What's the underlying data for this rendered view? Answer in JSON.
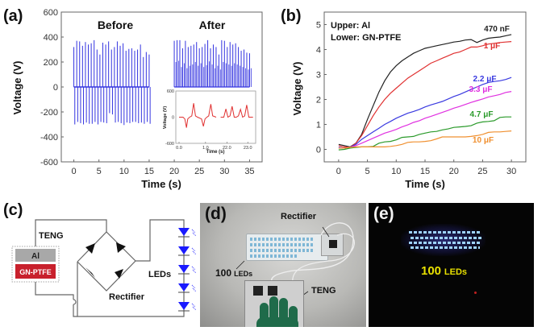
{
  "figure": {
    "panels": {
      "a": "(a)",
      "b": "(b)",
      "c": "(c)",
      "d": "(d)",
      "e": "(e)"
    }
  },
  "chart_data": [
    {
      "id": "a",
      "type": "line",
      "title": "",
      "xlabel": "Time (s)",
      "ylabel": "Voltage (V)",
      "xlim": [
        -2.5,
        37.5
      ],
      "ylim": [
        -600,
        600
      ],
      "xticks": [
        0,
        5,
        10,
        15,
        20,
        25,
        30,
        35
      ],
      "yticks": [
        -600,
        -400,
        -200,
        0,
        200,
        400,
        600
      ],
      "grid": false,
      "annotations": [
        "Before",
        "After"
      ],
      "color": "#3434e0",
      "series": [
        {
          "name": "Before",
          "kind": "ac_pulses",
          "x_range": [
            0,
            15
          ],
          "positive_peaks": [
            320,
            370,
            365,
            330,
            360,
            340,
            350,
            375,
            300,
            260,
            355,
            340,
            365,
            300,
            320,
            365,
            330,
            350,
            290,
            305,
            310,
            290,
            300,
            340,
            240,
            280,
            260
          ],
          "negative_peaks": [
            -300,
            -280,
            -290,
            -300,
            -285,
            -295,
            -295,
            -280,
            -300,
            -280,
            -285,
            -290,
            -210,
            -220,
            -285,
            -280,
            -290,
            -305,
            -285,
            -290,
            -280,
            -280,
            -290,
            -285,
            -295,
            -280,
            -295
          ]
        },
        {
          "name": "After",
          "kind": "dc_pulses",
          "x_range": [
            20,
            35
          ],
          "positive_peaks": [
            370,
            375,
            375,
            310,
            370,
            320,
            330,
            340,
            360,
            310,
            320,
            345,
            375,
            310,
            340,
            320,
            260,
            375,
            370,
            320,
            360,
            340,
            350,
            320,
            290,
            300,
            275,
            270
          ],
          "secondary_peaks": [
            200,
            210,
            160,
            190,
            150,
            170,
            180,
            200,
            170,
            190,
            160,
            175,
            205,
            180,
            150,
            170,
            140,
            200,
            190,
            180,
            170,
            190,
            180,
            170,
            160,
            150,
            140,
            150
          ]
        }
      ],
      "inset": {
        "type": "line",
        "xlabel": "Time (s)",
        "ylabel": "Voltage (V)",
        "ylim": [
          -600,
          600
        ],
        "yticks": [
          -600,
          0,
          600
        ],
        "xtick_labels": [
          "0.0",
          "1.0",
          "22.0",
          "23.0"
        ],
        "color": "#e03030",
        "segments": [
          {
            "name": "Before (0.0-1.4 s)",
            "points": [
              [
                0.0,
                0
              ],
              [
                0.15,
                0
              ],
              [
                0.22,
                -40
              ],
              [
                0.28,
                -240
              ],
              [
                0.33,
                -40
              ],
              [
                0.4,
                0
              ],
              [
                0.48,
                30
              ],
              [
                0.55,
                320
              ],
              [
                0.62,
                30
              ],
              [
                0.7,
                0
              ],
              [
                0.85,
                -40
              ],
              [
                0.92,
                -210
              ],
              [
                0.98,
                -40
              ],
              [
                1.05,
                0
              ],
              [
                1.12,
                30
              ],
              [
                1.2,
                300
              ],
              [
                1.27,
                30
              ],
              [
                1.4,
                0
              ]
            ]
          },
          {
            "name": "After (21.6-23.3 s)",
            "points": [
              [
                21.7,
                0
              ],
              [
                21.85,
                0
              ],
              [
                21.95,
                190
              ],
              [
                22.05,
                0
              ],
              [
                22.15,
                30
              ],
              [
                22.25,
                250
              ],
              [
                22.35,
                0
              ],
              [
                22.45,
                0
              ],
              [
                22.55,
                30
              ],
              [
                22.65,
                180
              ],
              [
                22.75,
                0
              ],
              [
                22.85,
                30
              ],
              [
                22.95,
                280
              ],
              [
                23.05,
                0
              ],
              [
                23.25,
                0
              ]
            ]
          }
        ]
      }
    },
    {
      "id": "b",
      "type": "line",
      "title": "",
      "xlabel": "Time (s)",
      "ylabel": "Voltage (V)",
      "xlim": [
        -2.5,
        32.5
      ],
      "ylim": [
        -0.5,
        5.5
      ],
      "xticks": [
        0,
        5,
        10,
        15,
        20,
        25,
        30
      ],
      "yticks": [
        0,
        1,
        2,
        3,
        4,
        5
      ],
      "grid": false,
      "legend_text": [
        "Upper: Al",
        "Lower: GN-PTFE"
      ],
      "legend_placement": "top-left",
      "series": [
        {
          "name": "470 nF",
          "color": "#222222",
          "x": [
            0,
            1,
            2,
            3,
            4,
            5,
            6,
            7,
            8,
            9,
            10,
            11,
            12,
            13,
            14,
            15,
            16,
            17,
            18,
            19,
            20,
            21,
            22,
            23,
            24,
            25,
            26,
            27,
            28,
            29,
            30
          ],
          "y": [
            0.2,
            0.15,
            0.1,
            0.25,
            0.6,
            1.2,
            1.75,
            2.3,
            2.75,
            3.1,
            3.35,
            3.55,
            3.7,
            3.85,
            3.95,
            4.05,
            4.1,
            4.15,
            4.2,
            4.25,
            4.3,
            4.33,
            4.38,
            4.4,
            4.28,
            4.38,
            4.45,
            4.48,
            4.5,
            4.55,
            4.6
          ]
        },
        {
          "name": "1 μF",
          "color": "#e03030",
          "x": [
            0,
            1,
            2,
            3,
            4,
            5,
            6,
            7,
            8,
            9,
            10,
            11,
            12,
            13,
            14,
            15,
            16,
            17,
            18,
            19,
            20,
            21,
            22,
            23,
            24,
            25,
            26,
            27,
            28,
            29,
            30
          ],
          "y": [
            0.15,
            0.1,
            0.08,
            0.25,
            0.55,
            0.95,
            1.35,
            1.7,
            2.0,
            2.25,
            2.45,
            2.65,
            2.85,
            3.0,
            3.15,
            3.3,
            3.45,
            3.55,
            3.65,
            3.75,
            3.85,
            3.9,
            4.0,
            4.1,
            4.1,
            4.15,
            4.22,
            4.25,
            4.28,
            4.3,
            4.32
          ]
        },
        {
          "name": "2.2 μF",
          "color": "#3a3ae0",
          "x": [
            0,
            1,
            2,
            3,
            4,
            5,
            6,
            7,
            8,
            9,
            10,
            11,
            12,
            13,
            14,
            15,
            16,
            17,
            18,
            19,
            20,
            21,
            22,
            23,
            24,
            25,
            26,
            27,
            28,
            29,
            30
          ],
          "y": [
            0.08,
            0.05,
            0.08,
            0.2,
            0.4,
            0.55,
            0.7,
            0.85,
            1.0,
            1.12,
            1.25,
            1.35,
            1.45,
            1.52,
            1.6,
            1.7,
            1.78,
            1.85,
            1.92,
            2.02,
            2.12,
            2.2,
            2.3,
            2.4,
            2.5,
            2.6,
            2.68,
            2.72,
            2.75,
            2.8,
            2.88
          ]
        },
        {
          "name": "3.3 μF",
          "color": "#e030e0",
          "x": [
            0,
            1,
            2,
            3,
            4,
            5,
            6,
            7,
            8,
            9,
            10,
            11,
            12,
            13,
            14,
            15,
            16,
            17,
            18,
            19,
            20,
            21,
            22,
            23,
            24,
            25,
            26,
            27,
            28,
            29,
            30
          ],
          "y": [
            0.05,
            0.05,
            0.08,
            0.15,
            0.25,
            0.35,
            0.45,
            0.55,
            0.65,
            0.72,
            0.8,
            0.9,
            0.98,
            1.08,
            1.15,
            1.25,
            1.32,
            1.4,
            1.48,
            1.56,
            1.65,
            1.72,
            1.8,
            1.88,
            1.95,
            2.02,
            2.1,
            2.15,
            2.2,
            2.28,
            2.32
          ]
        },
        {
          "name": "4.7 μF",
          "color": "#2a9a2a",
          "x": [
            0,
            1,
            2,
            3,
            4,
            5,
            6,
            7,
            8,
            9,
            10,
            11,
            12,
            13,
            14,
            15,
            16,
            17,
            18,
            19,
            20,
            21,
            22,
            23,
            24,
            25,
            26,
            27,
            28,
            29,
            30
          ],
          "y": [
            -0.02,
            0.0,
            0.05,
            0.08,
            0.1,
            0.1,
            0.12,
            0.25,
            0.3,
            0.32,
            0.38,
            0.48,
            0.5,
            0.52,
            0.6,
            0.65,
            0.7,
            0.72,
            0.78,
            0.82,
            0.88,
            0.9,
            0.92,
            0.95,
            1.05,
            1.1,
            1.12,
            1.15,
            1.28,
            1.3,
            1.3
          ]
        },
        {
          "name": "10 μF",
          "color": "#f09030",
          "x": [
            0,
            1,
            2,
            3,
            4,
            5,
            6,
            7,
            8,
            9,
            10,
            11,
            12,
            13,
            14,
            15,
            16,
            17,
            18,
            19,
            20,
            21,
            22,
            23,
            24,
            25,
            26,
            27,
            28,
            29,
            30
          ],
          "y": [
            0.05,
            0.05,
            0.08,
            0.1,
            0.1,
            0.1,
            0.1,
            0.1,
            0.1,
            0.12,
            0.15,
            0.2,
            0.28,
            0.3,
            0.3,
            0.32,
            0.35,
            0.42,
            0.5,
            0.5,
            0.5,
            0.5,
            0.5,
            0.52,
            0.55,
            0.6,
            0.68,
            0.7,
            0.7,
            0.72,
            0.74
          ]
        }
      ]
    }
  ],
  "diagram_c": {
    "teng_label": "TENG",
    "upper_layer": "Al",
    "lower_layer": "GN-PTFE",
    "rectifier_label": "Rectifier",
    "leds_label": "LEDs",
    "led_count_shown": 5,
    "colors": {
      "al": "#a8a8a8",
      "gnptfe": "#c8202c",
      "led": "#1a1aff",
      "wire": "#666666"
    }
  },
  "photo_d": {
    "rectifier_label": "Rectifier",
    "leds_label_num": "100",
    "leds_label_word": "LEDs",
    "teng_label": "TENG"
  },
  "photo_e": {
    "leds_label_num": "100",
    "leds_label_word": "LEDs",
    "label_color": "#e8e000"
  }
}
